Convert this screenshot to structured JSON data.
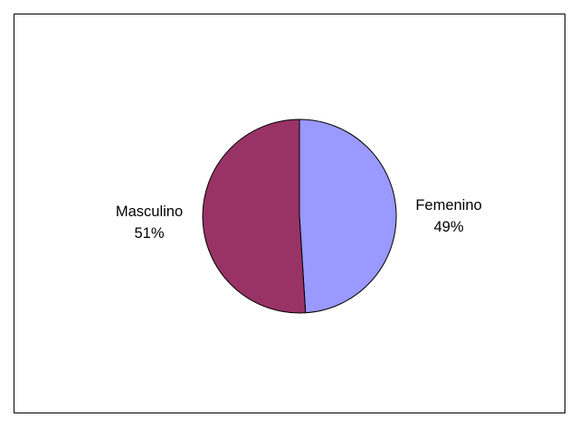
{
  "chart_data": {
    "type": "pie",
    "title": "",
    "slices": [
      {
        "label": "Femenino",
        "percent_label": "49%",
        "value": 49,
        "color": "#9999FF"
      },
      {
        "label": "Masculino",
        "percent_label": "51%",
        "value": 51,
        "color": "#993366"
      }
    ],
    "legend": false
  }
}
